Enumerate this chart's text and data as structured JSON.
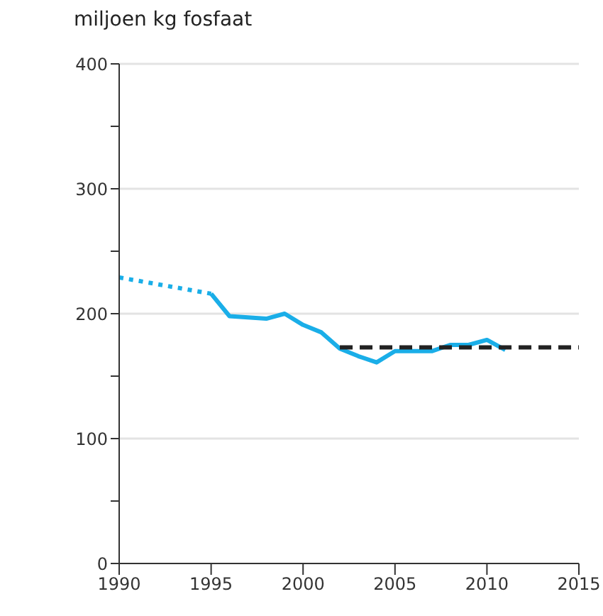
{
  "chart_data": {
    "type": "line",
    "title": "miljoen kg fosfaat",
    "series": [
      {
        "color": "#1aaee8",
        "line_style": "dotted",
        "x": [
          1990,
          1995
        ],
        "values": [
          229,
          216
        ]
      },
      {
        "color": "#1aaee8",
        "line_style": "solid",
        "x": [
          1995,
          1996,
          1997,
          1998,
          1999,
          2000,
          2001,
          2002,
          2003,
          2004,
          2005,
          2006,
          2007,
          2008,
          2009,
          2010,
          2011
        ],
        "values": [
          216,
          198,
          197,
          196,
          200,
          191,
          185,
          172,
          166,
          161,
          170,
          170,
          170,
          175,
          175,
          179,
          171
        ]
      },
      {
        "color": "#222222",
        "line_style": "dashed",
        "x": [
          2002,
          2015
        ],
        "values": [
          173,
          173
        ]
      }
    ],
    "xlim": [
      1990,
      2015
    ],
    "xticks": [
      1990,
      1995,
      2000,
      2005,
      2010,
      2015
    ],
    "ylim": [
      0,
      400
    ],
    "yticks": [
      0,
      {
        "value": 50,
        "label": null
      },
      100,
      {
        "value": 150,
        "label": null
      },
      200,
      {
        "value": 250,
        "label": null
      },
      300,
      {
        "value": 350,
        "label": null
      },
      400
    ],
    "grid": "y",
    "legend": false
  }
}
